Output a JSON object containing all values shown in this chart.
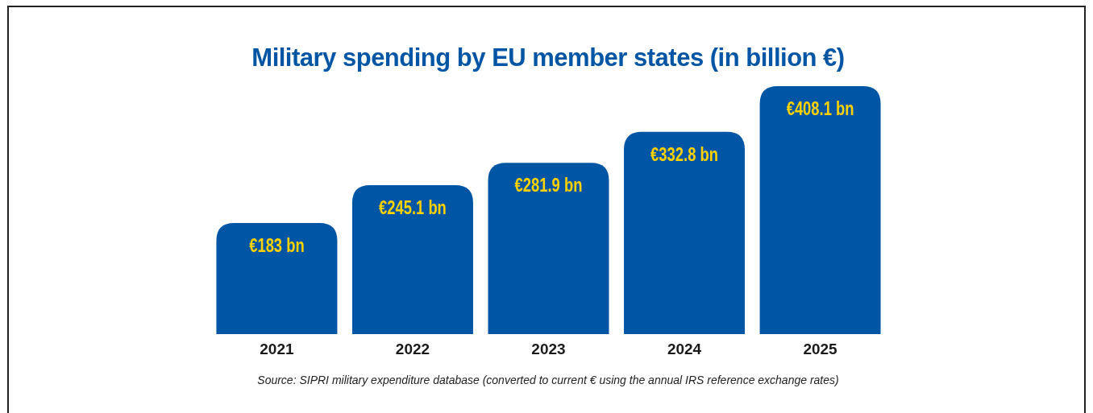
{
  "chart_data": {
    "type": "bar",
    "title": "Military spending by EU member states (in billion €)",
    "categories": [
      "2021",
      "2022",
      "2023",
      "2024",
      "2025"
    ],
    "values": [
      183,
      245.1,
      281.9,
      332.8,
      408.1
    ],
    "value_labels": [
      "€183 bn",
      "€245.1 bn",
      "€281.9 bn",
      "€332.8 bn",
      "€408.1 bn"
    ],
    "color": "#0055a4",
    "annotations": [
      "Source: SIPRI military expenditure database (converted to current € using the annual IRS reference exchange rates)"
    ],
    "data_labels": false
  }
}
